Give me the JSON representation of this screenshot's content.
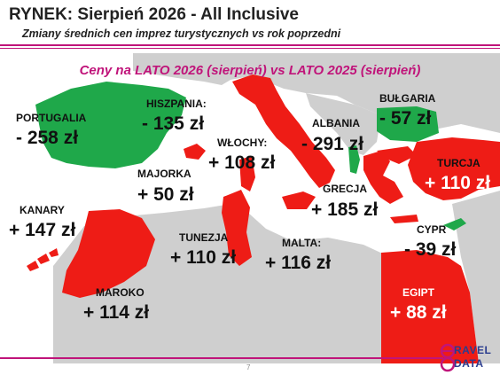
{
  "header": {
    "title": "RYNEK: Sierpień 2026 - All Inclusive",
    "subtitle": "Zmiany średnich cen imprez turystycznych vs rok poprzedni"
  },
  "map": {
    "heading": "Ceny na LATO 2026 (sierpień) vs  LATO 2025 (sierpień)",
    "legend_colors": {
      "increase": "#ee1c16",
      "decrease": "#1fa84a",
      "other_land": "#cfcfcf",
      "sea": "#ffffff"
    },
    "countries": [
      {
        "name": "PORTUGALIA",
        "change": "- 258 zł",
        "direction": "decrease"
      },
      {
        "name": "HISZPANIA:",
        "change": "- 135 zł",
        "direction": "decrease"
      },
      {
        "name": "MAJORKA",
        "change": "+ 50 zł",
        "direction": "increase"
      },
      {
        "name": "KANARY",
        "change": "+ 147 zł",
        "direction": "increase"
      },
      {
        "name": "WŁOCHY:",
        "change": "+ 108 zł",
        "direction": "increase"
      },
      {
        "name": "ALBANIA",
        "change": "- 291 zł",
        "direction": "decrease"
      },
      {
        "name": "BUŁGARIA",
        "change": "- 57 zł",
        "direction": "decrease"
      },
      {
        "name": "TURCJA",
        "change": "+ 110 zł",
        "direction": "increase"
      },
      {
        "name": "GRECJA",
        "change": "+ 185 zł",
        "direction": "increase"
      },
      {
        "name": "CYPR",
        "change": "- 39 zł",
        "direction": "decrease"
      },
      {
        "name": "TUNEZJA",
        "change": "+ 110 zł",
        "direction": "increase"
      },
      {
        "name": "MALTA:",
        "change": "+ 116 zł",
        "direction": "increase"
      },
      {
        "name": "MAROKO",
        "change": "+ 114 zł",
        "direction": "increase"
      },
      {
        "name": "EGIPT",
        "change": "+ 88 zł",
        "direction": "increase"
      }
    ]
  },
  "footer": {
    "page_number": "7",
    "logo_line1": "RAVEL",
    "logo_line2": "DATA"
  }
}
